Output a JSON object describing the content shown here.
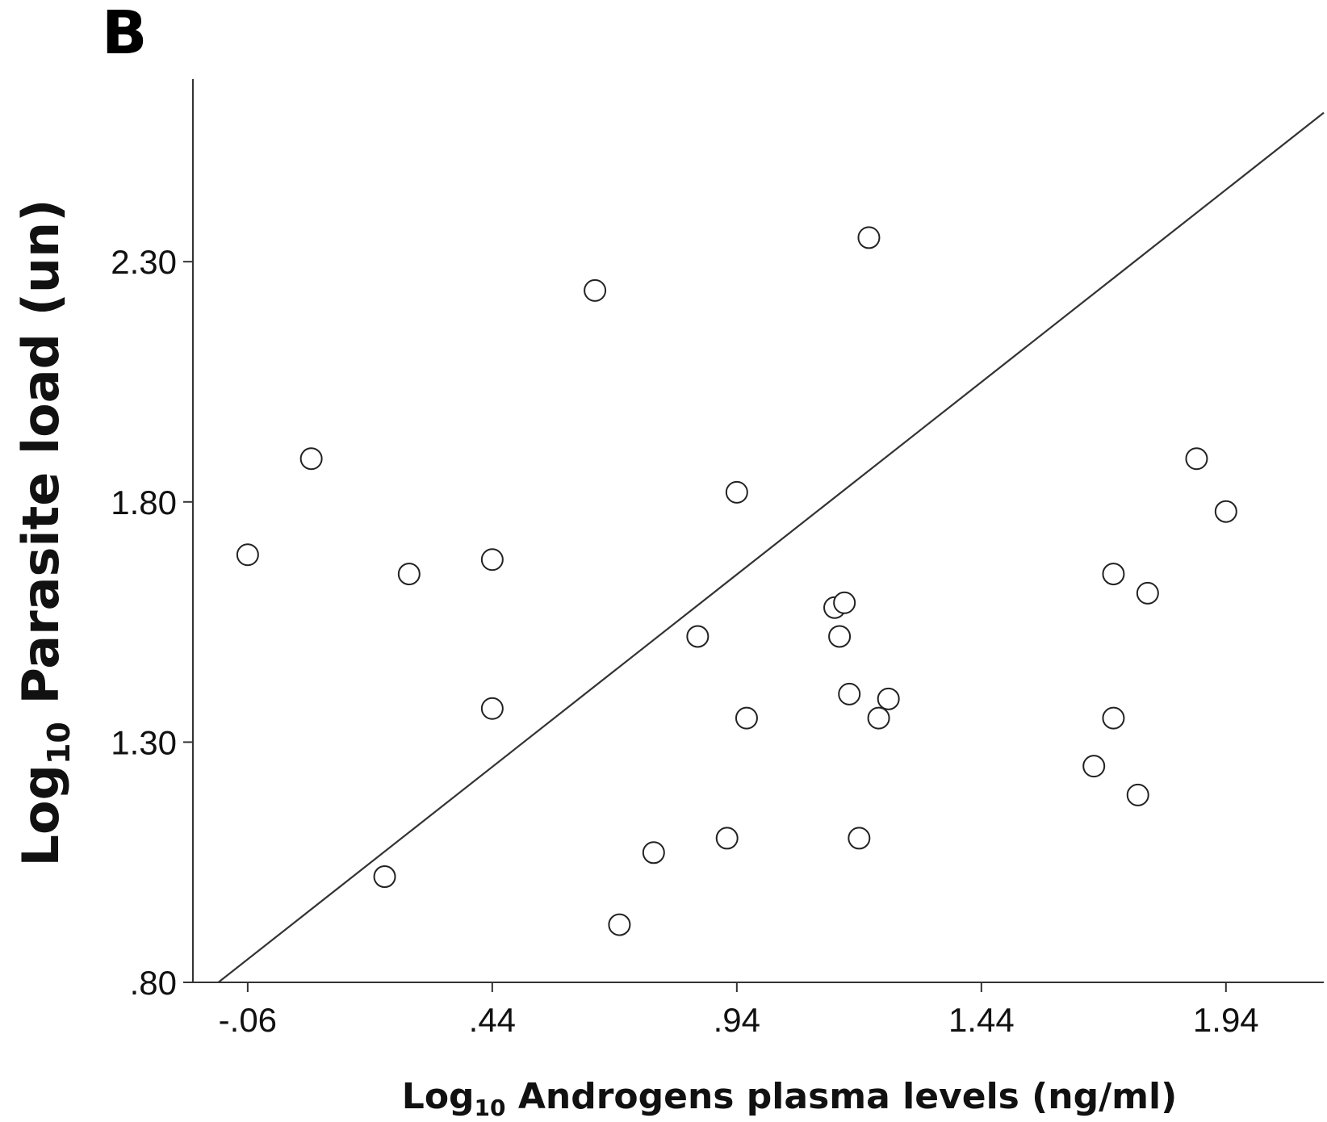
{
  "panel_label": "B",
  "chart_data": {
    "type": "scatter",
    "title": "",
    "xlabel": {
      "main": "Log",
      "sub": "10",
      "rest": " Androgens plasma levels (ng/ml)"
    },
    "ylabel": {
      "main": "Log",
      "sub": "10",
      "rest": " Parasite load (un)"
    },
    "xlim": [
      -0.172,
      2.14
    ],
    "ylim": [
      0.8,
      2.68
    ],
    "x_ticks": [
      -0.06,
      0.44,
      0.94,
      1.44,
      1.94
    ],
    "x_tick_labels": [
      "-.06",
      ".44",
      ".94",
      "1.44",
      "1.94"
    ],
    "y_ticks": [
      0.8,
      1.3,
      1.8,
      2.3
    ],
    "y_tick_labels": [
      ".80",
      "1.30",
      "1.80",
      "2.30"
    ],
    "grid": false,
    "legend": "none",
    "points": [
      {
        "x": -0.06,
        "y": 1.69
      },
      {
        "x": 0.07,
        "y": 1.89
      },
      {
        "x": 0.22,
        "y": 1.02
      },
      {
        "x": 0.27,
        "y": 1.65
      },
      {
        "x": 0.44,
        "y": 1.68
      },
      {
        "x": 0.44,
        "y": 1.37
      },
      {
        "x": 0.65,
        "y": 2.24
      },
      {
        "x": 0.7,
        "y": 0.92
      },
      {
        "x": 0.77,
        "y": 1.07
      },
      {
        "x": 0.86,
        "y": 1.52
      },
      {
        "x": 0.92,
        "y": 1.1
      },
      {
        "x": 0.94,
        "y": 1.82
      },
      {
        "x": 0.96,
        "y": 1.35
      },
      {
        "x": 1.14,
        "y": 1.58
      },
      {
        "x": 1.15,
        "y": 1.52
      },
      {
        "x": 1.16,
        "y": 1.59
      },
      {
        "x": 1.17,
        "y": 1.4
      },
      {
        "x": 1.19,
        "y": 1.1
      },
      {
        "x": 1.21,
        "y": 2.35
      },
      {
        "x": 1.23,
        "y": 1.35
      },
      {
        "x": 1.25,
        "y": 1.39
      },
      {
        "x": 1.67,
        "y": 1.25
      },
      {
        "x": 1.71,
        "y": 1.65
      },
      {
        "x": 1.71,
        "y": 1.35
      },
      {
        "x": 1.76,
        "y": 1.19
      },
      {
        "x": 1.78,
        "y": 1.61
      },
      {
        "x": 1.88,
        "y": 1.89
      },
      {
        "x": 1.94,
        "y": 1.78
      }
    ],
    "fit_line": {
      "x": [
        -0.12,
        2.14
      ],
      "y": [
        0.8,
        2.61
      ]
    }
  }
}
